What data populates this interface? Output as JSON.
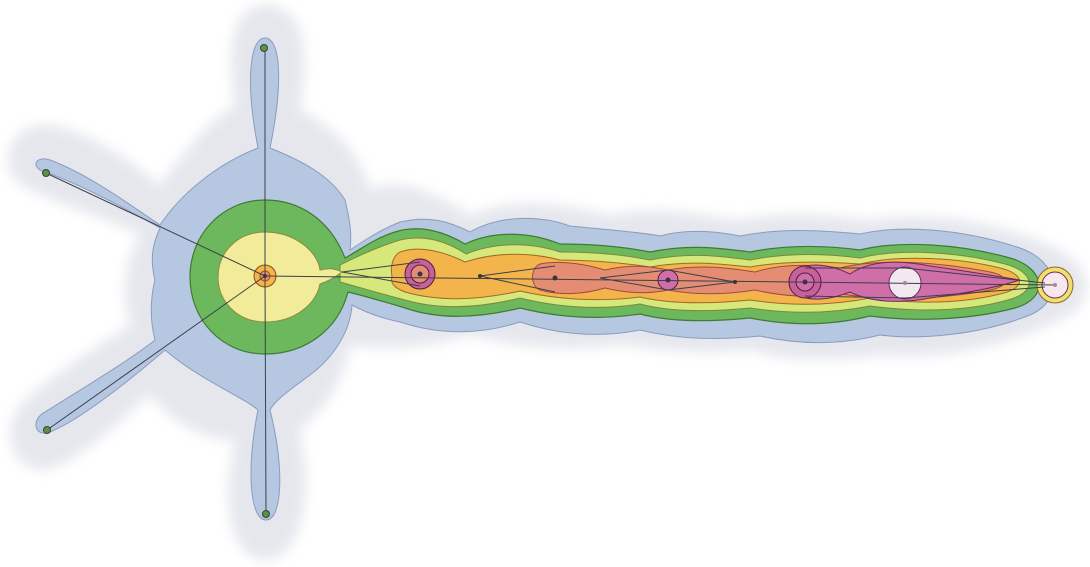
{
  "diagram": {
    "type": "neuron-skeleton-distance-field",
    "labels": [],
    "colors": {
      "halo": "#dcdde6",
      "outer": "#b3c4e0",
      "green": "#6bb55a",
      "yellow_green": "#d5e57a",
      "yellow": "#f0e070",
      "orange": "#f3b34a",
      "salmon": "#e58a6e",
      "magenta": "#cf6aa8",
      "node_green": "#5f8f4a",
      "node_dark": "#3a3440",
      "skeleton": "#3c3f4a"
    },
    "soma": {
      "label": "",
      "nodes": 1
    },
    "dendrites": {
      "label": "",
      "count": 5
    },
    "axon": {
      "label": "",
      "nodes": 8
    }
  }
}
